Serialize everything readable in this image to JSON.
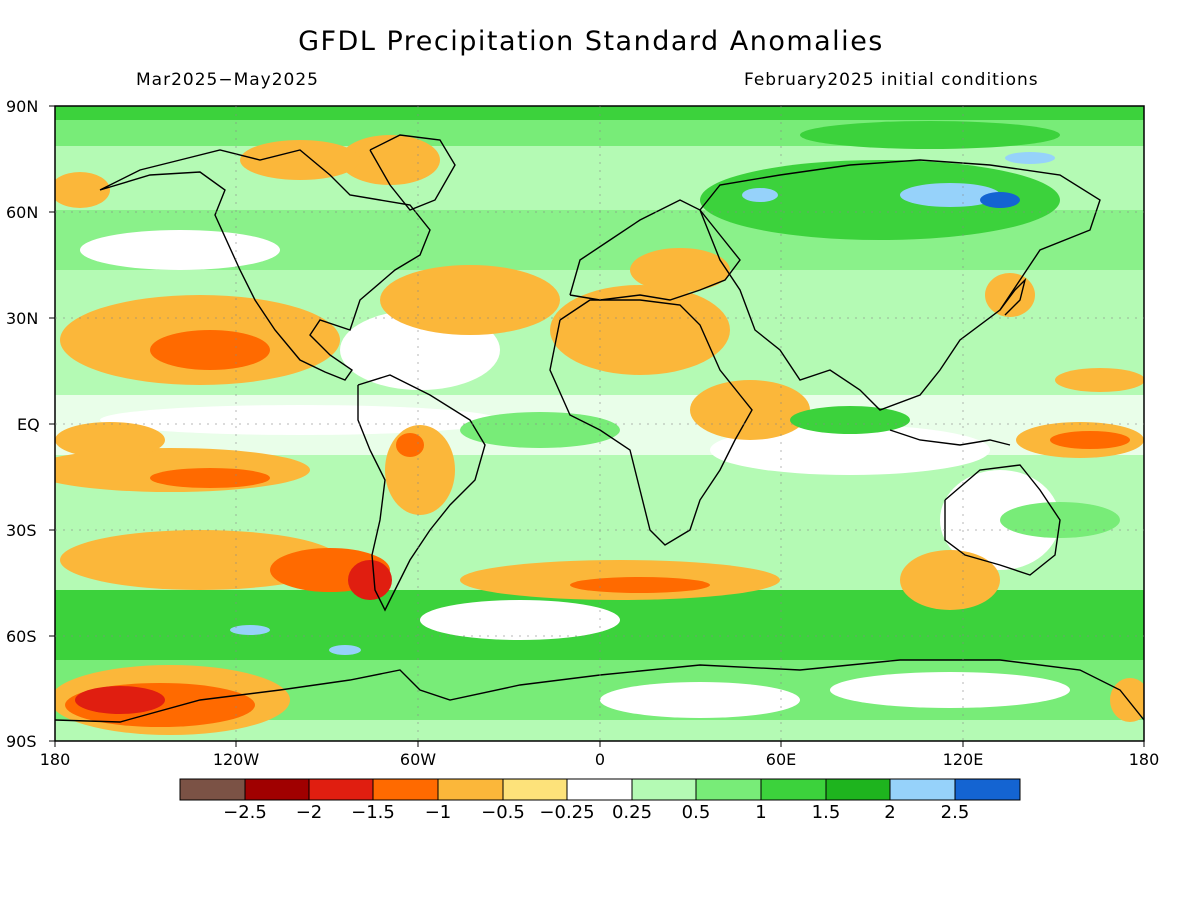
{
  "title": "GFDL Precipitation Standard Anomalies",
  "subtitle_left": "Mar2025−May2025",
  "subtitle_right": "February2025 initial conditions",
  "y_ticks": [
    "90N",
    "60N",
    "30N",
    "EQ",
    "30S",
    "60S",
    "90S"
  ],
  "x_ticks": [
    "180",
    "120W",
    "60W",
    "0",
    "60E",
    "120E",
    "180"
  ],
  "colorbar": {
    "colors": [
      "#7b5245",
      "#a00000",
      "#e01e10",
      "#ff6a00",
      "#fbb73a",
      "#fde27a",
      "#ffffff",
      "#b4fab4",
      "#78ec78",
      "#3cd23c",
      "#1eb41e",
      "#96d2fa",
      "#1464d2"
    ],
    "labels": [
      "−2.5",
      "−2",
      "−1.5",
      "−1",
      "−0.5",
      "−0.25",
      "0.25",
      "0.5",
      "1",
      "1.5",
      "2",
      "2.5"
    ]
  }
}
